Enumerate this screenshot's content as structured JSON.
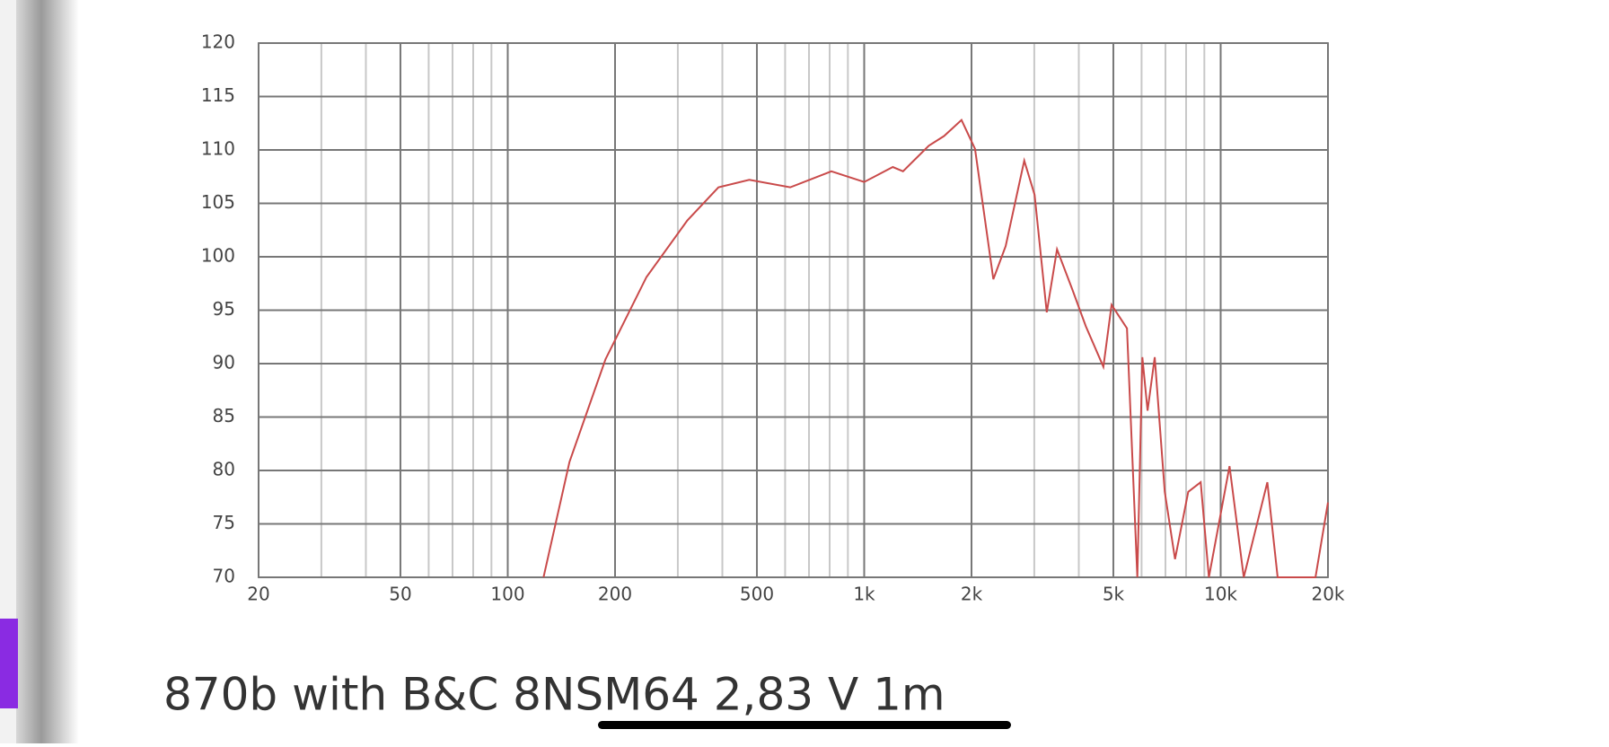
{
  "chart_data": {
    "type": "line",
    "xscale": "log",
    "grid": true,
    "color": "#c94a4a",
    "x": [
      126,
      149,
      188,
      245,
      319,
      390,
      476,
      620,
      809,
      1000,
      1203,
      1285,
      1518,
      1675,
      1875,
      2046,
      2303,
      2494,
      2812,
      3006,
      3252,
      3475,
      3840,
      4185,
      4688,
      4943,
      5460,
      5838,
      6030,
      6237,
      6532,
      6969,
      7447,
      8110,
      8790,
      9268,
      10590,
      11610,
      13520,
      14450,
      18450,
      20000
    ],
    "values": [
      70,
      80.8,
      90.4,
      98.1,
      103.4,
      106.5,
      107.2,
      106.5,
      108.0,
      107.0,
      108.4,
      108.0,
      110.4,
      111.3,
      112.8,
      110.1,
      97.9,
      101.0,
      109.0,
      105.8,
      94.8,
      100.7,
      96.9,
      93.5,
      89.7,
      95.5,
      93.3,
      70,
      90.6,
      85.6,
      90.6,
      78.0,
      71.7,
      78.0,
      78.9,
      70,
      80.4,
      70,
      78.9,
      70,
      70,
      77.0
    ],
    "xlim": [
      20,
      20000
    ],
    "xticks": [
      20,
      50,
      100,
      200,
      500,
      {
        "value": 1000,
        "label": "1k"
      },
      {
        "value": 2000,
        "label": "2k"
      },
      {
        "value": 5000,
        "label": "5k"
      },
      {
        "value": 10000,
        "label": "10k"
      },
      {
        "value": 20000,
        "label": "20k"
      }
    ],
    "x_minor_ticks": [
      30,
      40,
      60,
      70,
      80,
      90,
      300,
      400,
      600,
      700,
      800,
      900,
      3000,
      4000,
      6000,
      7000,
      8000,
      9000
    ],
    "ylim": [
      70,
      120
    ],
    "yticks": [
      70,
      75,
      80,
      85,
      90,
      95,
      100,
      105,
      110,
      115,
      120
    ]
  },
  "caption": "870b with B&C 8NSM64   2,83 V 1m"
}
